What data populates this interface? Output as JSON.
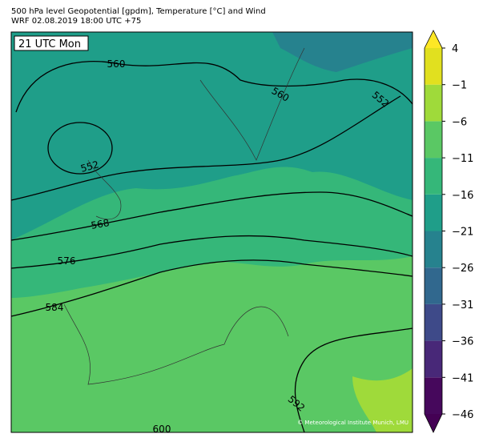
{
  "header": {
    "title_line1": "500 hPa level Geopotential [gpdm], Temperature [°C] and Wind",
    "title_line2": "WRF 02.08.2019 18:00 UTC +75"
  },
  "map": {
    "time_label": "21 UTC Mon",
    "credit": "© Meteorological Institute Munich, LMU",
    "contour_labels": [
      560,
      560,
      552,
      552,
      568,
      576,
      584,
      592,
      600
    ]
  },
  "colorbar": {
    "levels": [
      -46,
      -41,
      -36,
      -31,
      -26,
      -21,
      -16,
      -11,
      -6,
      -1,
      4
    ],
    "ticks": [
      {
        "value": 4,
        "label": "4"
      },
      {
        "value": -1,
        "label": "−1"
      },
      {
        "value": -6,
        "label": "−6"
      },
      {
        "value": -11,
        "label": "−11"
      },
      {
        "value": -16,
        "label": "−16"
      },
      {
        "value": -21,
        "label": "−21"
      },
      {
        "value": -26,
        "label": "−26"
      },
      {
        "value": -31,
        "label": "−31"
      },
      {
        "value": -36,
        "label": "−36"
      },
      {
        "value": -41,
        "label": "−41"
      },
      {
        "value": -46,
        "label": "−46"
      }
    ],
    "colors": [
      "#46085c",
      "#482878",
      "#3e4a89",
      "#31688e",
      "#26828e",
      "#1f9e89",
      "#35b779",
      "#5ac864",
      "#9fda3a",
      "#e1e01f"
    ],
    "extend_low_color": "#440154",
    "extend_high_color": "#fde725"
  }
}
